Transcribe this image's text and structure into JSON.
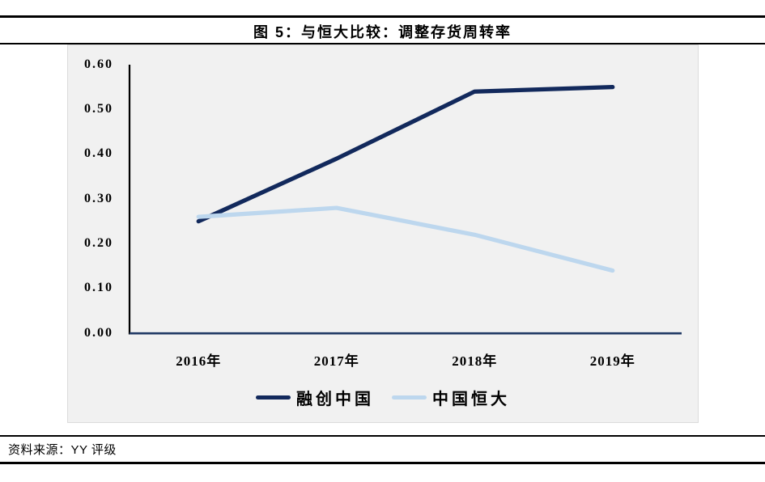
{
  "title": "图 5：与恒大比较：调整存货周转率",
  "source": "资料来源：YY 评级",
  "chart_data": {
    "type": "line",
    "title": "图 5：与恒大比较：调整存货周转率",
    "categories": [
      "2016年",
      "2017年",
      "2018年",
      "2019年"
    ],
    "series": [
      {
        "name": "融创中国",
        "color": "#12295c",
        "values": [
          0.25,
          0.39,
          0.54,
          0.55
        ]
      },
      {
        "name": "中国恒大",
        "color": "#bdd7ee",
        "values": [
          0.26,
          0.28,
          0.22,
          0.14
        ]
      }
    ],
    "ylim": [
      0,
      0.6
    ],
    "ytick_labels": [
      "0.60",
      "0.50",
      "0.40",
      "0.30",
      "0.20",
      "0.10",
      "0.00"
    ],
    "grid": false,
    "legend_position": "bottom",
    "plot_background": "#f1f1f1",
    "axis_colors": {
      "y_axis": "#000000",
      "x_axis": "#1f3864"
    }
  }
}
